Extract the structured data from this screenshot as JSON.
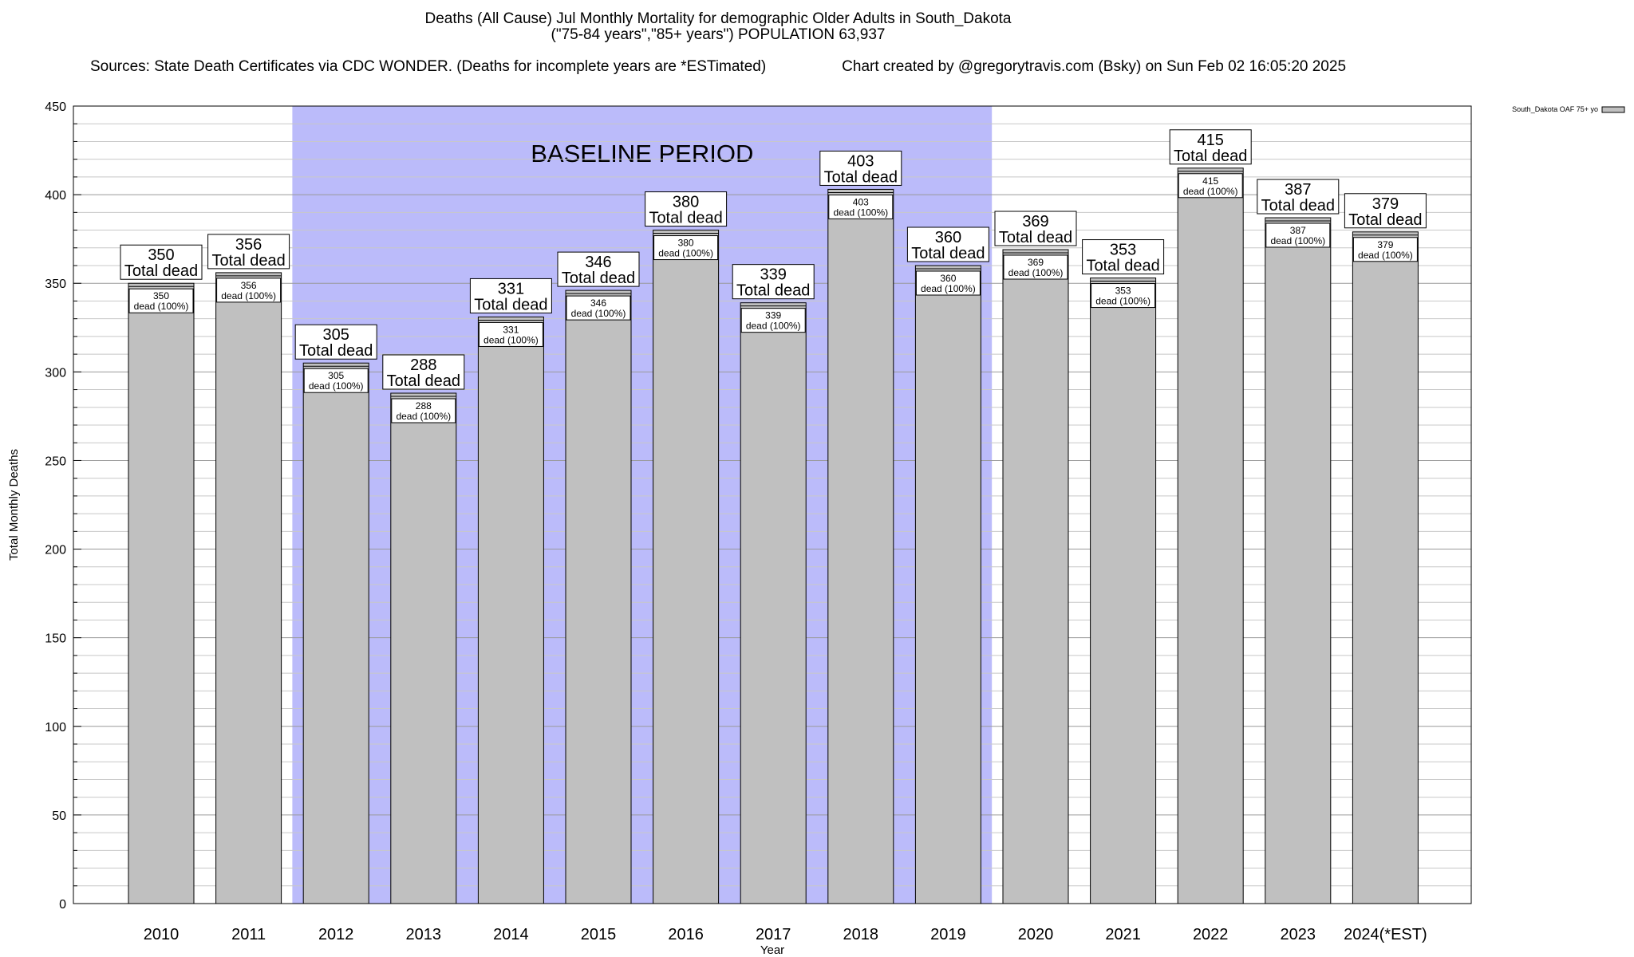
{
  "chart_data": {
    "type": "bar",
    "title": "Deaths (All Cause) Jul Monthly Mortality for demographic Older Adults in South_Dakota",
    "subtitle": "(\"75-84 years\",\"85+ years\") POPULATION 63,937",
    "sources": "Sources: State Death Certificates via CDC WONDER. (Deaths for incomplete years are *ESTimated)",
    "credit": "Chart created by @gregorytravis.com (Bsky) on Sun Feb 02 16:05:20 2025",
    "xlabel": "Year",
    "ylabel": "Total Monthly Deaths",
    "ylim": [
      0,
      450
    ],
    "yticks": [
      0,
      50,
      100,
      150,
      200,
      250,
      300,
      350,
      400,
      450
    ],
    "categories": [
      "2010",
      "2011",
      "2012",
      "2013",
      "2014",
      "2015",
      "2016",
      "2017",
      "2018",
      "2019",
      "2020",
      "2021",
      "2022",
      "2023",
      "2024(*EST)"
    ],
    "series": [
      {
        "name": "South_Dakota OAF 75+ yo",
        "values": [
          350,
          356,
          305,
          288,
          331,
          346,
          380,
          339,
          403,
          360,
          369,
          353,
          415,
          387,
          379
        ]
      }
    ],
    "total_label": "Total dead",
    "inner_label": "dead (100%)",
    "baseline": {
      "label": "BASELINE PERIOD",
      "start": "2012",
      "end": "2019",
      "color": "#bbbbfa"
    },
    "bar_color": "#c0c0c0",
    "grid": true,
    "legend_position": "top-right"
  }
}
